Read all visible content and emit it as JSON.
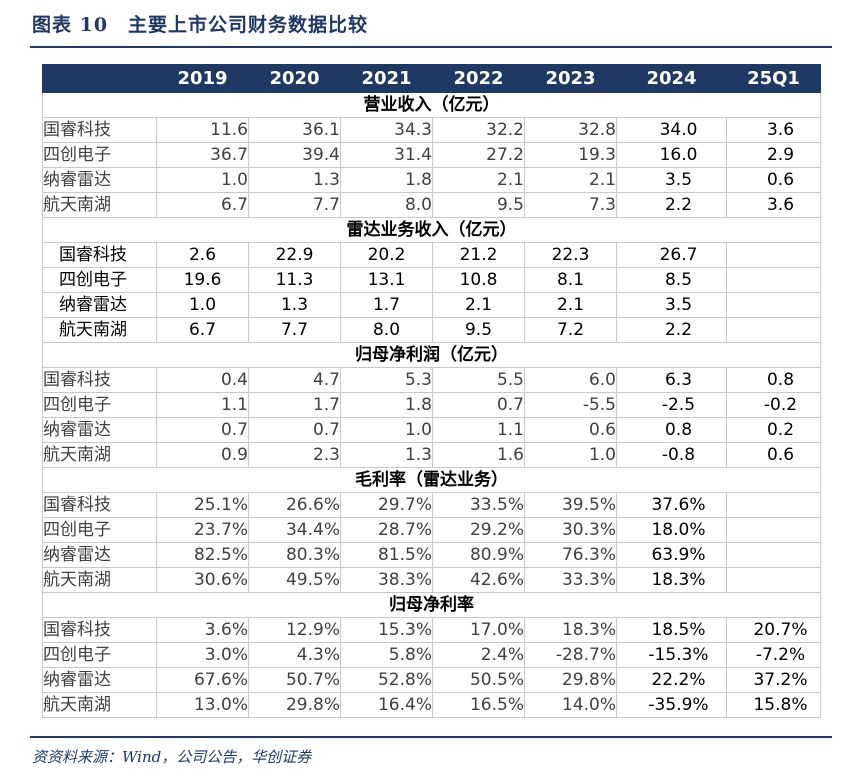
{
  "figure_title": "图表 10　主要上市公司财务数据比较",
  "source": "资资料来源：Wind，公司公告，华创证券",
  "table": {
    "headers": [
      "",
      "2019",
      "2020",
      "2021",
      "2022",
      "2023",
      "2024",
      "25Q1"
    ],
    "sections": [
      {
        "title": "营业收入（亿元）",
        "rows": [
          {
            "company": "国睿科技",
            "values": [
              "11.6",
              "36.1",
              "34.3",
              "32.2",
              "32.8",
              "34.0",
              "3.6"
            ]
          },
          {
            "company": "四创电子",
            "values": [
              "36.7",
              "39.4",
              "31.4",
              "27.2",
              "19.3",
              "16.0",
              "2.9"
            ]
          },
          {
            "company": "纳睿雷达",
            "values": [
              "1.0",
              "1.3",
              "1.8",
              "2.1",
              "2.1",
              "3.5",
              "0.6"
            ]
          },
          {
            "company": "航天南湖",
            "values": [
              "6.7",
              "7.7",
              "8.0",
              "9.5",
              "7.3",
              "2.2",
              "3.6"
            ]
          }
        ]
      },
      {
        "title": "雷达业务收入（亿元）",
        "rows": [
          {
            "company": "国睿科技",
            "values": [
              "2.6",
              "22.9",
              "20.2",
              "21.2",
              "22.3",
              "26.7",
              ""
            ]
          },
          {
            "company": "四创电子",
            "values": [
              "19.6",
              "11.3",
              "13.1",
              "10.8",
              "8.1",
              "8.5",
              ""
            ]
          },
          {
            "company": "纳睿雷达",
            "values": [
              "1.0",
              "1.3",
              "1.7",
              "2.1",
              "2.1",
              "3.5",
              ""
            ]
          },
          {
            "company": "航天南湖",
            "values": [
              "6.7",
              "7.7",
              "8.0",
              "9.5",
              "7.2",
              "2.2",
              ""
            ]
          }
        ]
      },
      {
        "title": "归母净利润（亿元）",
        "rows": [
          {
            "company": "国睿科技",
            "values": [
              "0.4",
              "4.7",
              "5.3",
              "5.5",
              "6.0",
              "6.3",
              "0.8"
            ]
          },
          {
            "company": "四创电子",
            "values": [
              "1.1",
              "1.7",
              "1.8",
              "0.7",
              "-5.5",
              "-2.5",
              "-0.2"
            ]
          },
          {
            "company": "纳睿雷达",
            "values": [
              "0.7",
              "0.7",
              "1.0",
              "1.1",
              "0.6",
              "0.8",
              "0.2"
            ]
          },
          {
            "company": "航天南湖",
            "values": [
              "0.9",
              "2.3",
              "1.3",
              "1.6",
              "1.0",
              "-0.8",
              "0.6"
            ]
          }
        ]
      },
      {
        "title": "毛利率（雷达业务）",
        "rows": [
          {
            "company": "国睿科技",
            "values": [
              "25.1%",
              "26.6%",
              "29.7%",
              "33.5%",
              "39.5%",
              "37.6%",
              ""
            ]
          },
          {
            "company": "四创电子",
            "values": [
              "23.7%",
              "34.4%",
              "28.7%",
              "29.2%",
              "30.3%",
              "18.0%",
              ""
            ]
          },
          {
            "company": "纳睿雷达",
            "values": [
              "82.5%",
              "80.3%",
              "81.5%",
              "80.9%",
              "76.3%",
              "63.9%",
              ""
            ]
          },
          {
            "company": "航天南湖",
            "values": [
              "30.6%",
              "49.5%",
              "38.3%",
              "42.6%",
              "33.3%",
              "18.3%",
              ""
            ]
          }
        ]
      },
      {
        "title": "归母净利率",
        "rows": [
          {
            "company": "国睿科技",
            "values": [
              "3.6%",
              "12.9%",
              "15.3%",
              "17.0%",
              "18.3%",
              "18.5%",
              "20.7%"
            ]
          },
          {
            "company": "四创电子",
            "values": [
              "3.0%",
              "4.3%",
              "5.8%",
              "2.4%",
              "-28.7%",
              "-15.3%",
              "-7.2%"
            ]
          },
          {
            "company": "纳睿雷达",
            "values": [
              "67.6%",
              "50.7%",
              "52.8%",
              "50.5%",
              "29.8%",
              "22.2%",
              "37.2%"
            ]
          },
          {
            "company": "航天南湖",
            "values": [
              "13.0%",
              "29.8%",
              "16.4%",
              "16.5%",
              "14.0%",
              "-35.9%",
              "15.8%"
            ]
          }
        ]
      }
    ]
  }
}
